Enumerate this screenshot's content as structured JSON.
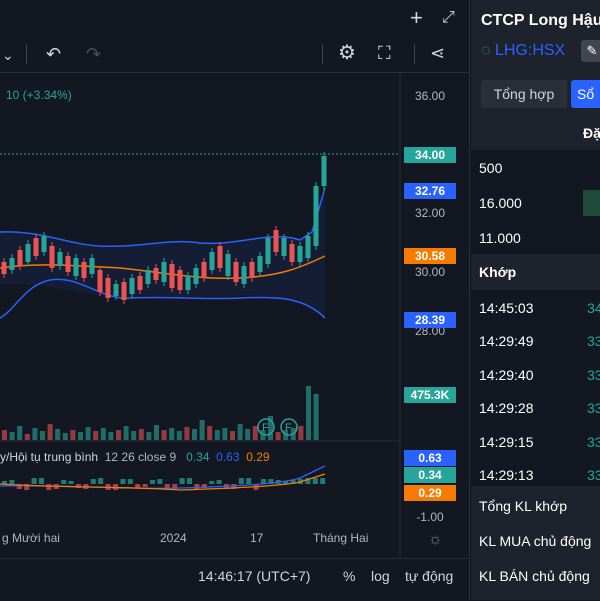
{
  "topbar": {
    "plus_icon": "plus-icon",
    "expand_icon": "expand-icon"
  },
  "toolbar": {
    "dropdown_icon": "chevron-down-icon",
    "undo_icon": "undo-icon",
    "redo_icon": "redo-icon",
    "settings_icon": "gear-icon",
    "fullscreen_icon": "fullscreen-icon",
    "share_icon": "share-icon"
  },
  "legend": {
    "change": "10 (+3.34%)"
  },
  "price_axis": {
    "ticks": [
      "36.00",
      "32.00",
      "30.00",
      "28.00"
    ],
    "tags": [
      {
        "label": "34.00",
        "color": "#26a69a"
      },
      {
        "label": "32.76",
        "color": "#2962ff"
      },
      {
        "label": "30.58",
        "color": "#f57c00"
      },
      {
        "label": "28.39",
        "color": "#2962ff"
      },
      {
        "label": "475.3K",
        "color": "#26a69a"
      }
    ]
  },
  "macd": {
    "title": "y/Hội tụ trung bình",
    "params": "12 26 close 9",
    "val1": "0.34",
    "val2": "0.63",
    "val3": "0.29",
    "tags": [
      {
        "label": "0.63",
        "color": "#2962ff"
      },
      {
        "label": "0.34",
        "color": "#26a69a"
      },
      {
        "label": "0.29",
        "color": "#f57c00"
      }
    ],
    "axis_tick": "-1.00"
  },
  "time_axis": {
    "labels": [
      "g Mười hai",
      "2024",
      "17",
      "Tháng Hai"
    ]
  },
  "bottom": {
    "time": "14:46:17 (UTC+7)",
    "percent": "%",
    "log": "log",
    "auto": "tự động"
  },
  "side": {
    "title": "CTCP Long Hậu",
    "ticker": "LHG:HSX",
    "tabs": [
      "Tổng hợp",
      "Sổ"
    ],
    "header": "Đặ",
    "book": [
      "500",
      "16.000",
      "11.000"
    ],
    "match_title": "Khớp",
    "matches": [
      {
        "time": "14:45:03",
        "p": "34"
      },
      {
        "time": "14:29:49",
        "p": "33"
      },
      {
        "time": "14:29:40",
        "p": "33"
      },
      {
        "time": "14:29:28",
        "p": "33"
      },
      {
        "time": "14:29:15",
        "p": "33"
      },
      {
        "time": "14:29:13",
        "p": "33"
      }
    ],
    "summary": [
      "Tổng KL khớp",
      "KL MUA chủ động",
      "KL BÁN chủ động"
    ]
  },
  "colors": {
    "up": "#26a69a",
    "down": "#ef5350",
    "band": "#2962ff",
    "ma": "#f57c00"
  }
}
